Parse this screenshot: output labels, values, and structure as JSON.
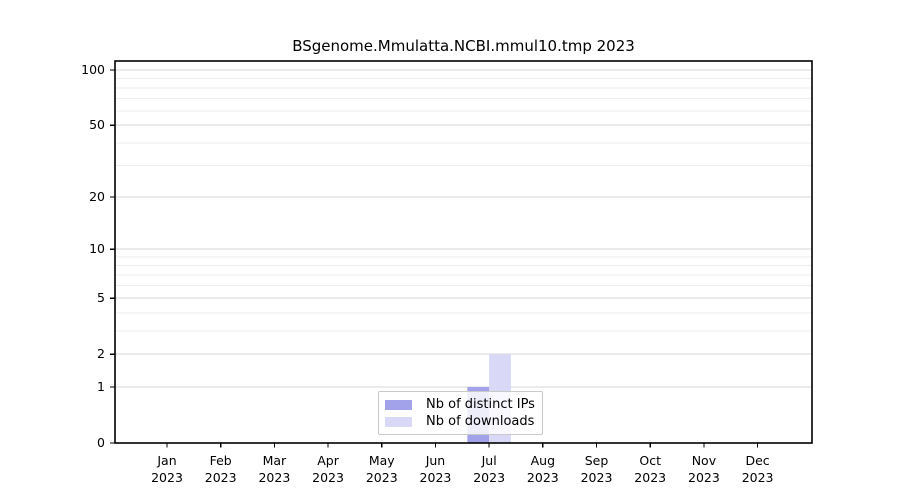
{
  "chart_data": {
    "type": "bar",
    "title": "BSgenome.Mmulatta.NCBI.mmul10.tmp 2023",
    "categories": [
      "Jan",
      "Feb",
      "Mar",
      "Apr",
      "May",
      "Jun",
      "Jul",
      "Aug",
      "Sep",
      "Oct",
      "Nov",
      "Dec"
    ],
    "category_sublabel": "2023",
    "series": [
      {
        "key": "distinct-ips",
        "name": "Nb of distinct IPs",
        "color": "#a2a2ea",
        "values": [
          0,
          0,
          0,
          0,
          0,
          0,
          1,
          0,
          0,
          0,
          0,
          0
        ]
      },
      {
        "key": "downloads",
        "name": "Nb of downloads",
        "color": "#d9d9f7",
        "values": [
          0,
          0,
          0,
          0,
          0,
          0,
          2,
          0,
          0,
          0,
          0,
          0
        ]
      }
    ],
    "y_axis": {
      "scale": "log1p",
      "max": 100,
      "tick_labels": [
        0,
        1,
        2,
        5,
        10,
        20,
        50,
        100
      ],
      "gridlines_major": [
        1,
        2,
        5,
        10,
        20,
        50,
        100
      ],
      "gridlines_minor": [
        3,
        4,
        6,
        7,
        8,
        9,
        30,
        40,
        60,
        70,
        80,
        90
      ]
    },
    "xlabel": "",
    "ylabel": "",
    "grid": true,
    "legend_position": "bottom-center"
  },
  "colors": {
    "grid_major": "#d7d7d7",
    "grid_minor": "#ededed",
    "axis": "#000000",
    "legend_border": "#c9c9c9",
    "text": "#000000"
  }
}
